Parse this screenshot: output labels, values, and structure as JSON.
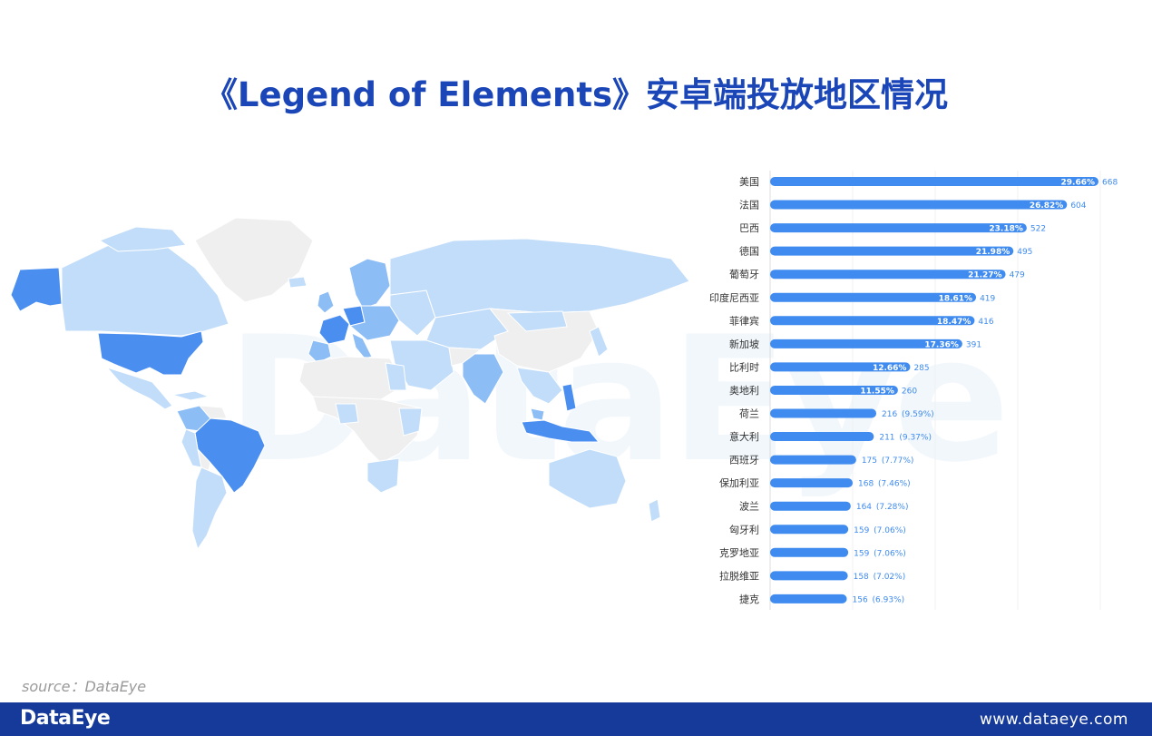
{
  "title": "《Legend of Elements》安卓端投放地区情况",
  "watermark": "DataEye",
  "source": "source：DataEye",
  "footer": {
    "logo": "DataEye",
    "url": "www.dataeye.com"
  },
  "map": {
    "legend_colors": {
      "high": "#4a8ef0",
      "mid": "#8dbdf5",
      "low": "#c2ddf9",
      "none": "#efefef"
    }
  },
  "chart_data": {
    "type": "bar",
    "orientation": "horizontal",
    "bar_color": "#3f8bef",
    "label_color": "#3f8bef",
    "categories": [
      "美国",
      "法国",
      "巴西",
      "德国",
      "葡萄牙",
      "印度尼西亚",
      "菲律宾",
      "新加坡",
      "比利时",
      "奥地利",
      "荷兰",
      "意大利",
      "西班牙",
      "保加利亚",
      "波兰",
      "匈牙利",
      "克罗地亚",
      "拉脱维亚",
      "捷克"
    ],
    "values": [
      668,
      604,
      522,
      495,
      479,
      419,
      416,
      391,
      285,
      260,
      216,
      211,
      175,
      168,
      164,
      159,
      159,
      158,
      156
    ],
    "percent_labels": [
      "29.66%",
      "26.82%",
      "23.18%",
      "21.98%",
      "21.27%",
      "18.61%",
      "18.47%",
      "17.36%",
      "12.66%",
      "11.55%",
      "(9.59%)",
      "(9.37%)",
      "(7.77%)",
      "(7.46%)",
      "(7.28%)",
      "(7.06%)",
      "(7.06%)",
      "(7.02%)",
      "(6.93%)"
    ],
    "label_inside": [
      true,
      true,
      true,
      true,
      true,
      true,
      true,
      true,
      true,
      true,
      false,
      false,
      false,
      false,
      false,
      false,
      false,
      false,
      false
    ],
    "grid": true
  }
}
